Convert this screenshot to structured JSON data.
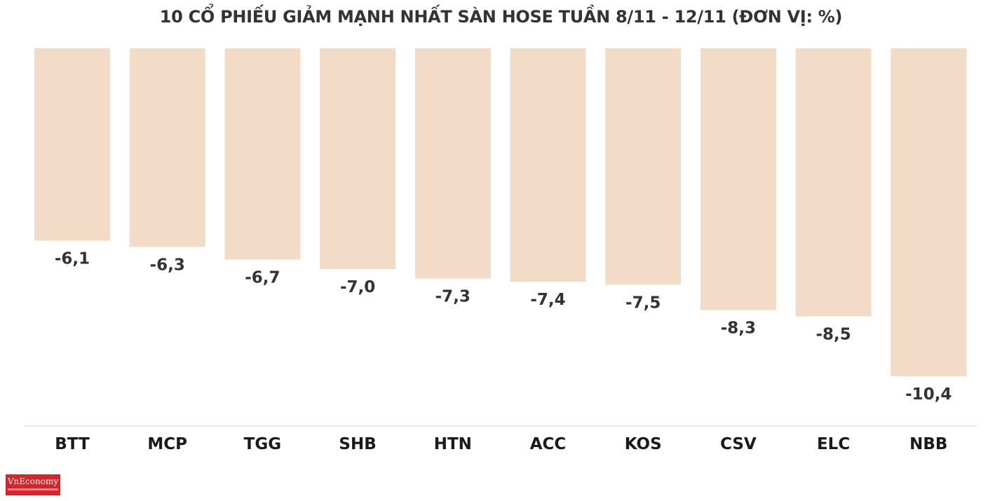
{
  "brand": {
    "logo_text": "VnEconomy",
    "logo_color": "#d8232a"
  },
  "chart_data": {
    "type": "bar",
    "title": "10 CỔ PHIẾU GIẢM MẠNH NHẤT SÀN HOSE TUẦN 8/11 - 12/11 (ĐƠN VỊ: %)",
    "xlabel": "",
    "ylabel": "",
    "categories": [
      "BTT",
      "MCP",
      "TGG",
      "SHB",
      "HTN",
      "ACC",
      "KOS",
      "CSV",
      "ELC",
      "NBB"
    ],
    "values": [
      -6.1,
      -6.3,
      -6.7,
      -7.0,
      -7.3,
      -7.4,
      -7.5,
      -8.3,
      -8.5,
      -10.4
    ],
    "value_labels": [
      "-6,1",
      "-6,3",
      "-6,7",
      "-7,0",
      "-7,3",
      "-7,4",
      "-7,5",
      "-8,3",
      "-8,5",
      "-10,4"
    ],
    "baseline": 0,
    "bar_color": "#f2dbc7",
    "grid": false,
    "legend": "none"
  }
}
